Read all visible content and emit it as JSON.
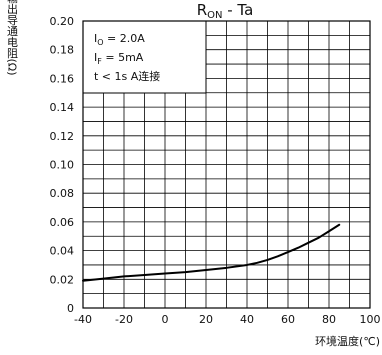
{
  "chart_data": {
    "type": "line",
    "title": {
      "main": "R",
      "sub": "ON",
      "rest": " - Ta"
    },
    "xlabel": "环境温度(℃)",
    "ylabel": "输出导通电阻(Ω)",
    "xlim": [
      -40,
      100
    ],
    "ylim": [
      0,
      0.2
    ],
    "x_ticks": [
      "-40",
      "-20",
      "0",
      "20",
      "40",
      "60",
      "80",
      "100"
    ],
    "y_ticks": [
      "0",
      "0.02",
      "0.04",
      "0.06",
      "0.08",
      "0.10",
      "0.12",
      "0.14",
      "0.16",
      "0.18",
      "0.20"
    ],
    "grid": true,
    "conditions": [
      {
        "main": "I",
        "sub": "O",
        "rest": " = 2.0A"
      },
      {
        "main": "I",
        "sub": "F",
        "rest": " = 5mA"
      },
      {
        "main": "t < 1s  A连接",
        "sub": "",
        "rest": ""
      }
    ],
    "series": [
      {
        "x": [
          -40,
          -30,
          -20,
          -10,
          0,
          10,
          20,
          30,
          40,
          45,
          50,
          55,
          60,
          65,
          70,
          75,
          80,
          85
        ],
        "values": [
          0.019,
          0.0205,
          0.022,
          0.023,
          0.024,
          0.025,
          0.0265,
          0.028,
          0.03,
          0.0315,
          0.0335,
          0.036,
          0.039,
          0.042,
          0.0455,
          0.049,
          0.0535,
          0.058
        ]
      }
    ]
  }
}
